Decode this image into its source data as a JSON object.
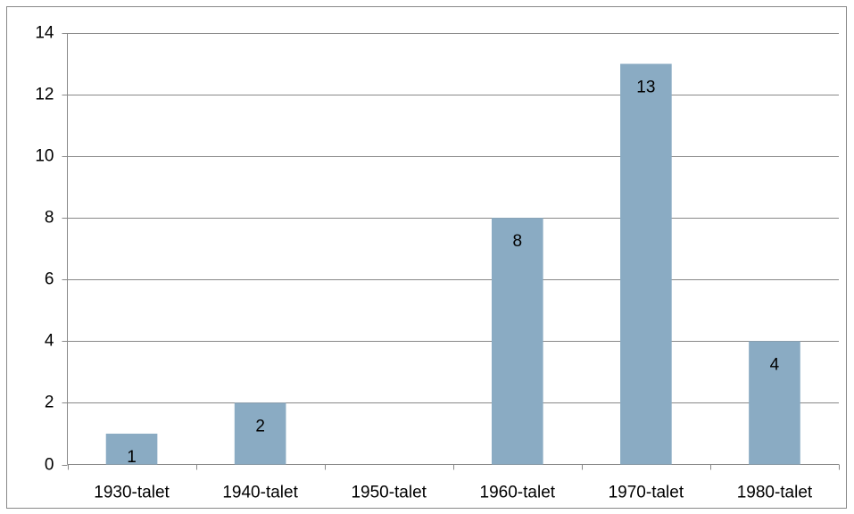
{
  "chart_data": {
    "type": "bar",
    "categories": [
      "1930-talet",
      "1940-talet",
      "1950-talet",
      "1960-talet",
      "1970-talet",
      "1980-talet"
    ],
    "values": [
      1,
      2,
      null,
      8,
      13,
      4
    ],
    "color": "#8aabc3",
    "ylim": [
      0,
      14
    ],
    "yticks": [
      0,
      2,
      4,
      6,
      8,
      10,
      12,
      14
    ],
    "grid": true
  }
}
